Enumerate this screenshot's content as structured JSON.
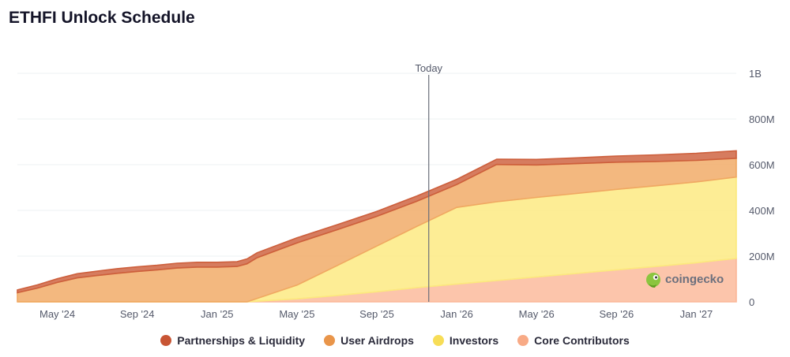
{
  "title": "ETHFI Unlock Schedule",
  "watermark": "coingecko",
  "today_label": "Today",
  "chart_data": {
    "type": "area",
    "stacked": true,
    "title": "ETHFI Unlock Schedule",
    "x_unit": "months since Mar 2024",
    "x_ticks": [
      {
        "label": "May '24",
        "x": 2
      },
      {
        "label": "Sep '24",
        "x": 6
      },
      {
        "label": "Jan '25",
        "x": 10
      },
      {
        "label": "May '25",
        "x": 14
      },
      {
        "label": "Sep '25",
        "x": 18
      },
      {
        "label": "Jan '26",
        "x": 22
      },
      {
        "label": "May '26",
        "x": 26
      },
      {
        "label": "Sep '26",
        "x": 30
      },
      {
        "label": "Jan '27",
        "x": 34
      }
    ],
    "y_ticks": [
      {
        "label": "0",
        "value": 0
      },
      {
        "label": "200M",
        "value": 200
      },
      {
        "label": "400M",
        "value": 400
      },
      {
        "label": "600M",
        "value": 600
      },
      {
        "label": "800M",
        "value": 800
      },
      {
        "label": "1B",
        "value": 1000
      }
    ],
    "xlim": [
      0,
      36
    ],
    "ylim": [
      0,
      1000
    ],
    "y_unit": "M tokens",
    "today_x": 20.6,
    "series": [
      {
        "name": "Core Contributors",
        "color": "#fbb899",
        "points": [
          [
            0,
            0
          ],
          [
            11.5,
            0
          ],
          [
            14,
            13
          ],
          [
            16,
            28
          ],
          [
            18,
            44
          ],
          [
            20,
            62
          ],
          [
            22,
            78
          ],
          [
            24,
            93
          ],
          [
            26,
            109
          ],
          [
            28,
            124
          ],
          [
            30,
            140
          ],
          [
            32,
            155
          ],
          [
            34,
            171
          ],
          [
            36,
            190
          ]
        ]
      },
      {
        "name": "Investors",
        "color": "#fce97e",
        "points": [
          [
            0,
            0
          ],
          [
            11.5,
            0
          ],
          [
            14,
            60
          ],
          [
            16,
            130
          ],
          [
            18,
            200
          ],
          [
            20,
            268
          ],
          [
            22,
            335
          ],
          [
            24,
            345
          ],
          [
            26,
            348
          ],
          [
            28,
            350
          ],
          [
            30,
            352
          ],
          [
            32,
            353
          ],
          [
            34,
            354
          ],
          [
            36,
            356
          ]
        ]
      },
      {
        "name": "User Airdrops",
        "color": "#f0a863",
        "points": [
          [
            0,
            40
          ],
          [
            1,
            60
          ],
          [
            2,
            85
          ],
          [
            3,
            105
          ],
          [
            4,
            115
          ],
          [
            5,
            125
          ],
          [
            6,
            133
          ],
          [
            7,
            140
          ],
          [
            8,
            148
          ],
          [
            9,
            152
          ],
          [
            10,
            152
          ],
          [
            11,
            155
          ],
          [
            12,
            178
          ],
          [
            14,
            185
          ],
          [
            16,
            157
          ],
          [
            18,
            130
          ],
          [
            20,
            110
          ],
          [
            22,
            100
          ],
          [
            24,
            163
          ],
          [
            26,
            142
          ],
          [
            28,
            131
          ],
          [
            30,
            119
          ],
          [
            32,
            106
          ],
          [
            34,
            94
          ],
          [
            36,
            82
          ]
        ]
      },
      {
        "name": "Partnerships & Liquidity",
        "color": "#cd5f3c",
        "points": [
          [
            0,
            12
          ],
          [
            1,
            14
          ],
          [
            2,
            16
          ],
          [
            3,
            18
          ],
          [
            4,
            19
          ],
          [
            5,
            20
          ],
          [
            6,
            20
          ],
          [
            7,
            20
          ],
          [
            8,
            21
          ],
          [
            9,
            21
          ],
          [
            10,
            21
          ],
          [
            11,
            21
          ],
          [
            12,
            22
          ],
          [
            14,
            22
          ],
          [
            16,
            22
          ],
          [
            18,
            22
          ],
          [
            20,
            23
          ],
          [
            22,
            23
          ],
          [
            24,
            23
          ],
          [
            26,
            24
          ],
          [
            28,
            25
          ],
          [
            30,
            27
          ],
          [
            32,
            29
          ],
          [
            34,
            31
          ],
          [
            36,
            33
          ]
        ]
      }
    ]
  },
  "legend": [
    {
      "label": "Partnerships & Liquidity",
      "color": "#c85534"
    },
    {
      "label": "User Airdrops",
      "color": "#e9954a"
    },
    {
      "label": "Investors",
      "color": "#f7dd57"
    },
    {
      "label": "Core Contributors",
      "color": "#f8aa86"
    }
  ]
}
